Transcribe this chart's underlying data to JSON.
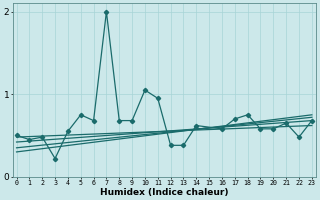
{
  "xlabel": "Humidex (Indice chaleur)",
  "bg_color": "#cce8ea",
  "grid_color": "#a8d4d6",
  "line_color": "#1a6b6b",
  "x_ticks": [
    0,
    1,
    2,
    3,
    4,
    5,
    6,
    7,
    8,
    9,
    10,
    11,
    12,
    13,
    14,
    15,
    16,
    17,
    18,
    19,
    20,
    21,
    22,
    23
  ],
  "y_ticks": [
    0,
    1,
    2
  ],
  "xlim": [
    0,
    23
  ],
  "ylim": [
    0,
    2.1
  ],
  "main_x": [
    0,
    1,
    2,
    3,
    4,
    5,
    6,
    7,
    8,
    9,
    10,
    11,
    12,
    13,
    14,
    16,
    17,
    18,
    19,
    20,
    21,
    22,
    23
  ],
  "main_y": [
    0.5,
    0.45,
    0.48,
    0.22,
    0.55,
    0.75,
    0.68,
    2.0,
    0.68,
    0.68,
    1.05,
    0.95,
    0.38,
    0.38,
    0.62,
    0.58,
    0.7,
    0.75,
    0.58,
    0.58,
    0.65,
    0.48,
    0.68
  ],
  "line2_x": [
    0,
    23
  ],
  "line2_y": [
    0.42,
    0.68
  ],
  "line3_x": [
    0,
    23
  ],
  "line3_y": [
    0.35,
    0.72
  ],
  "line4_x": [
    0,
    23
  ],
  "line4_y": [
    0.3,
    0.75
  ],
  "line5_x": [
    0,
    23
  ],
  "line5_y": [
    0.48,
    0.62
  ],
  "spine_color": "#5a8a8a"
}
